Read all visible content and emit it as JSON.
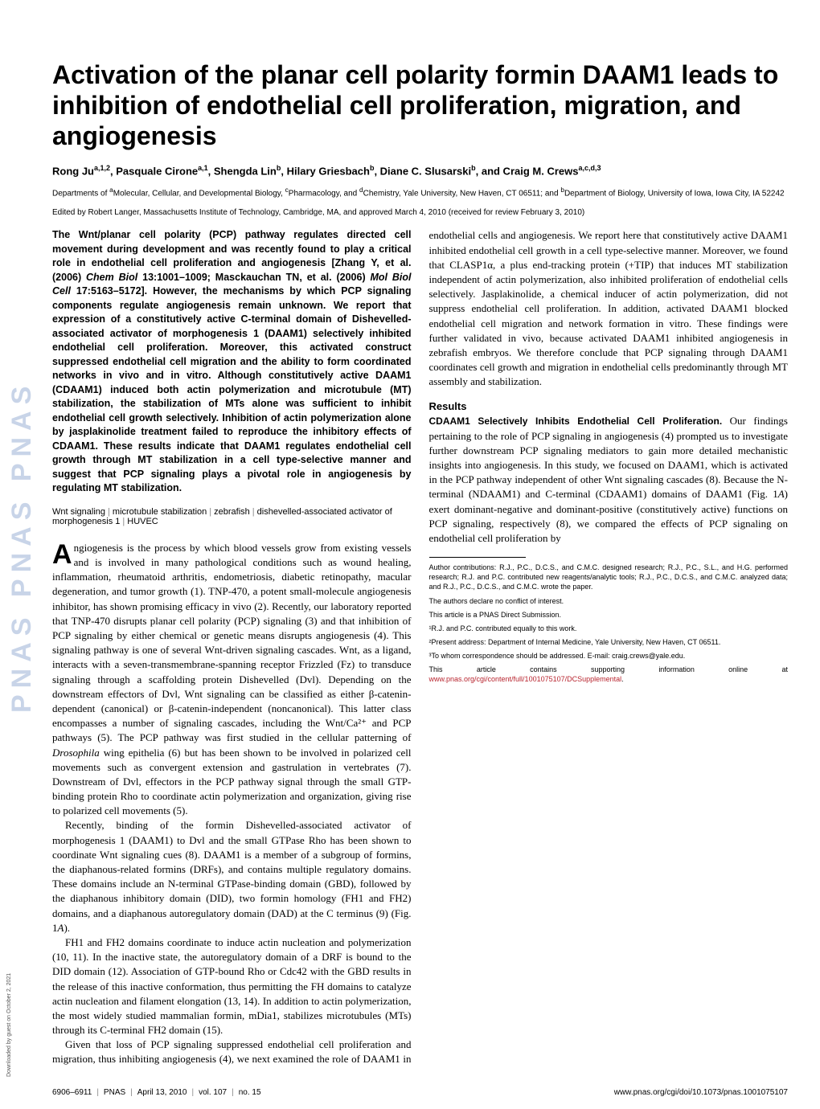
{
  "journal": {
    "sidebar_text": "PNAS PNAS PNAS"
  },
  "title": "Activation of the planar cell polarity formin DAAM1 leads to inhibition of endothelial cell proliferation, migration, and angiogenesis",
  "authors_html": "Rong Ju<sup>a,1,2</sup>, Pasquale Cirone<sup>a,1</sup>, Shengda Lin<sup>b</sup>, Hilary Griesbach<sup>b</sup>, Diane C. Slusarski<sup>b</sup>, and Craig M. Crews<sup>a,c,d,3</sup>",
  "affiliations_html": "Departments of <sup>a</sup>Molecular, Cellular, and Developmental Biology, <sup>c</sup>Pharmacology, and <sup>d</sup>Chemistry, Yale University, New Haven, CT 06511; and <sup>b</sup>Department of Biology, University of Iowa, Iowa City, IA 52242",
  "edited": "Edited by Robert Langer, Massachusetts Institute of Technology, Cambridge, MA, and approved March 4, 2010 (received for review February 3, 2010)",
  "abstract_html": "The Wnt/planar cell polarity (PCP) pathway regulates directed cell movement during development and was recently found to play a critical role in endothelial cell proliferation and angiogenesis [Zhang Y, et al. (2006) <i>Chem Biol</i> 13:1001–1009; Masckauchan TN, et al. (2006) <i>Mol Biol Cell</i> 17:5163–5172]. However, the mechanisms by which PCP signaling components regulate angiogenesis remain unknown. We report that expression of a constitutively active C-terminal domain of Dishevelled-associated activator of morphogenesis 1 (DAAM1) selectively inhibited endothelial cell proliferation. Moreover, this activated construct suppressed endothelial cell migration and the ability to form coordinated networks in vivo and in vitro. Although constitutively active DAAM1 (CDAAM1) induced both actin polymerization and microtubule (MT) stabilization, the stabilization of MTs alone was sufficient to inhibit endothelial cell growth selectively. Inhibition of actin polymerization alone by jasplakinolide treatment failed to reproduce the inhibitory effects of CDAAM1. These results indicate that DAAM1 regulates endothelial cell growth through MT stabilization in a cell type-selective manner and suggest that PCP signaling plays a pivotal role in angiogenesis by regulating MT stabilization.",
  "keywords": [
    "Wnt signaling",
    "microtubule stabilization",
    "zebrafish",
    "dishevelled-associated activator of morphogenesis 1",
    "HUVEC"
  ],
  "body": {
    "p1_first_letter": "A",
    "p1_rest": "ngiogenesis is the process by which blood vessels grow from existing vessels and is involved in many pathological conditions such as wound healing, inflammation, rheumatoid arthritis, endometriosis, diabetic retinopathy, macular degeneration, and tumor growth (1). TNP-470, a potent small-molecule angiogenesis inhibitor, has shown promising efficacy in vivo (2). Recently, our laboratory reported that TNP-470 disrupts planar cell polarity (PCP) signaling (3) and that inhibition of PCP signaling by either chemical or genetic means disrupts angiogenesis (4). This signaling pathway is one of several Wnt-driven signaling cascades. Wnt, as a ligand, interacts with a seven-transmembrane-spanning receptor Frizzled (Fz) to transduce signaling through a scaffolding protein Dishevelled (Dvl). Depending on the downstream effectors of Dvl, Wnt signaling can be classified as either β-catenin-dependent (canonical) or β-catenin-independent (noncanonical). This latter class encompasses a number of signaling cascades, including the Wnt/Ca²⁺ and PCP pathways (5). The PCP pathway was first studied in the cellular patterning of ",
    "p1_rest_cont_html": "<i>Drosophila</i> wing epithelia (6) but has been shown to be involved in polarized cell movements such as convergent extension and gastrulation in vertebrates (7). Downstream of Dvl, effectors in the PCP pathway signal through the small GTP-binding protein Rho to coordinate actin polymerization and organization, giving rise to polarized cell movements (5).",
    "p2": "Recently, binding of the formin Dishevelled-associated activator of morphogenesis 1 (DAAM1) to Dvl and the small GTPase Rho has been shown to coordinate Wnt signaling cues (8). DAAM1 is a member of a subgroup of formins, the diaphanous-related formins (DRFs), and contains multiple regulatory domains. These domains include an N-terminal GTPase-binding domain (GBD),",
    "p2_cont_html": "followed by the diaphanous inhibitory domain (DID), two formin homology (FH1 and FH2) domains, and a diaphanous autoregulatory domain (DAD) at the C terminus (9) (Fig. 1<i>A</i>).",
    "p3_html": "FH1 and FH2 domains coordinate to induce actin nucleation and polymerization (10, 11). In the inactive state, the autoregulatory domain of a DRF is bound to the DID domain (12). Association of GTP-bound Rho or Cdc42 with the GBD results in the release of this inactive conformation, thus permitting the FH domains to catalyze actin nucleation and filament elongation (13, 14). In addition to actin polymerization, the most widely studied mammalian formin, mDia1, stabilizes microtubules (MTs) through its C-terminal FH2 domain (15).",
    "p4_html": "Given that loss of PCP signaling suppressed endothelial cell proliferation and migration, thus inhibiting angiogenesis (4), we next examined the role of DAAM1 in endothelial cells and angiogenesis. We report here that constitutively active DAAM1 inhibited endothelial cell growth in a cell type-selective manner. Moreover, we found that CLASP1α, a plus end-tracking protein (+TIP) that induces MT stabilization independent of actin polymerization, also inhibited proliferation of endothelial cells selectively. Jasplakinolide, a chemical inducer of actin polymerization, did not suppress endothelial cell proliferation. In addition, activated DAAM1 blocked endothelial cell migration and network formation in vitro. These findings were further validated in vivo, because activated DAAM1 inhibited angiogenesis in zebrafish embryos. We therefore conclude that PCP signaling through DAAM1 coordinates cell growth and migration in endothelial cells predominantly through MT assembly and stabilization."
  },
  "results": {
    "heading": "Results",
    "sub1_head": "CDAAM1 Selectively Inhibits Endothelial Cell Proliferation.",
    "sub1_body_html": " Our findings pertaining to the role of PCP signaling in angiogenesis (4) prompted us to investigate further downstream PCP signaling mediators to gain more detailed mechanistic insights into angiogenesis. In this study, we focused on DAAM1, which is activated in the PCP pathway independent of other Wnt signaling cascades (8). Because the N-terminal (NDAAM1) and C-terminal (CDAAM1) domains of DAAM1 (Fig. 1<i>A</i>) exert dominant-negative and dominant-positive (constitutively active) functions on PCP signaling, respectively (8), we compared the effects of PCP signaling on endothelial cell proliferation by"
  },
  "footnotes": {
    "contrib": "Author contributions: R.J., P.C., D.C.S., and C.M.C. designed research; R.J., P.C., S.L., and H.G. performed research; R.J. and P.C. contributed new reagents/analytic tools; R.J., P.C., D.C.S., and C.M.C. analyzed data; and R.J., P.C., D.C.S., and C.M.C. wrote the paper.",
    "conflict": "The authors declare no conflict of interest.",
    "submission": "This article is a PNAS Direct Submission.",
    "fn1": "¹R.J. and P.C. contributed equally to this work.",
    "fn2": "²Present address: Department of Internal Medicine, Yale University, New Haven, CT 06511.",
    "fn3": "³To whom correspondence should be addressed. E-mail: craig.crews@yale.edu.",
    "supp_pre": "This article contains supporting information online at ",
    "supp_link": "www.pnas.org/cgi/content/full/1001075107/DCSupplemental",
    "supp_post": "."
  },
  "footer": {
    "pages": "6906–6911",
    "journal": "PNAS",
    "date": "April 13, 2010",
    "volume": "vol. 107",
    "issue": "no. 15",
    "doi": "www.pnas.org/cgi/doi/10.1073/pnas.1001075107"
  },
  "download": "Downloaded by guest on October 2, 2021",
  "colors": {
    "link": "#b8252f",
    "sidebar_text": "#c8d4e8"
  }
}
